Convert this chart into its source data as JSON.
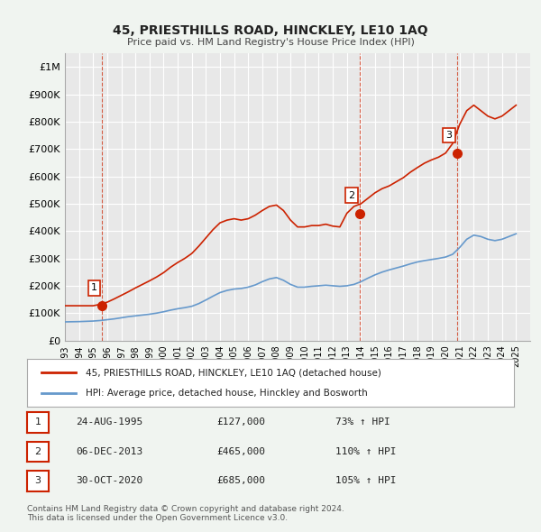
{
  "title": "45, PRIESTHILLS ROAD, HINCKLEY, LE10 1AQ",
  "subtitle": "Price paid vs. HM Land Registry's House Price Index (HPI)",
  "ylabel": "",
  "xlim_start": 1993,
  "xlim_end": 2026,
  "ylim_min": 0,
  "ylim_max": 1050000,
  "yticks": [
    0,
    100000,
    200000,
    300000,
    400000,
    500000,
    600000,
    700000,
    800000,
    900000,
    1000000
  ],
  "ytick_labels": [
    "£0",
    "£100K",
    "£200K",
    "£300K",
    "£400K",
    "£500K",
    "£600K",
    "£700K",
    "£800K",
    "£900K",
    "£1M"
  ],
  "xticks": [
    1993,
    1994,
    1995,
    1996,
    1997,
    1998,
    1999,
    2000,
    2001,
    2002,
    2003,
    2004,
    2005,
    2006,
    2007,
    2008,
    2009,
    2010,
    2011,
    2012,
    2013,
    2014,
    2015,
    2016,
    2017,
    2018,
    2019,
    2020,
    2021,
    2022,
    2023,
    2024,
    2025
  ],
  "hpi_color": "#6699cc",
  "price_color": "#cc2200",
  "bg_color": "#f0f0f0",
  "plot_bg_color": "#e8e8e8",
  "grid_color": "#ffffff",
  "transaction_dates": [
    1995.65,
    2013.92,
    2020.83
  ],
  "transaction_prices": [
    127000,
    465000,
    685000
  ],
  "transaction_labels": [
    "1",
    "2",
    "3"
  ],
  "legend_label_price": "45, PRIESTHILLS ROAD, HINCKLEY, LE10 1AQ (detached house)",
  "legend_label_hpi": "HPI: Average price, detached house, Hinckley and Bosworth",
  "table_rows": [
    [
      "1",
      "24-AUG-1995",
      "£127,000",
      "73% ↑ HPI"
    ],
    [
      "2",
      "06-DEC-2013",
      "£465,000",
      "110% ↑ HPI"
    ],
    [
      "3",
      "30-OCT-2020",
      "£685,000",
      "105% ↑ HPI"
    ]
  ],
  "footer": "Contains HM Land Registry data © Crown copyright and database right 2024.\nThis data is licensed under the Open Government Licence v3.0.",
  "hpi_x": [
    1993,
    1993.5,
    1994,
    1994.5,
    1995,
    1995.5,
    1996,
    1996.5,
    1997,
    1997.5,
    1998,
    1998.5,
    1999,
    1999.5,
    2000,
    2000.5,
    2001,
    2001.5,
    2002,
    2002.5,
    2003,
    2003.5,
    2004,
    2004.5,
    2005,
    2005.5,
    2006,
    2006.5,
    2007,
    2007.5,
    2008,
    2008.5,
    2009,
    2009.5,
    2010,
    2010.5,
    2011,
    2011.5,
    2012,
    2012.5,
    2013,
    2013.5,
    2014,
    2014.5,
    2015,
    2015.5,
    2016,
    2016.5,
    2017,
    2017.5,
    2018,
    2018.5,
    2019,
    2019.5,
    2020,
    2020.5,
    2021,
    2021.5,
    2022,
    2022.5,
    2023,
    2023.5,
    2024,
    2024.5,
    2025
  ],
  "hpi_y": [
    68000,
    68500,
    69000,
    70000,
    71000,
    73000,
    76000,
    79000,
    83000,
    87000,
    90000,
    93000,
    96000,
    100000,
    105000,
    111000,
    116000,
    120000,
    125000,
    135000,
    148000,
    162000,
    175000,
    183000,
    188000,
    190000,
    195000,
    203000,
    215000,
    225000,
    230000,
    220000,
    205000,
    195000,
    195000,
    198000,
    200000,
    202000,
    200000,
    198000,
    200000,
    205000,
    215000,
    228000,
    240000,
    250000,
    258000,
    265000,
    272000,
    280000,
    287000,
    292000,
    296000,
    300000,
    305000,
    315000,
    340000,
    370000,
    385000,
    380000,
    370000,
    365000,
    370000,
    380000,
    390000
  ],
  "price_x": [
    1993,
    1993.5,
    1994,
    1994.5,
    1995,
    1995.5,
    1996,
    1996.5,
    1997,
    1997.5,
    1998,
    1998.5,
    1999,
    1999.5,
    2000,
    2000.5,
    2001,
    2001.5,
    2002,
    2002.5,
    2003,
    2003.5,
    2004,
    2004.5,
    2005,
    2005.5,
    2006,
    2006.5,
    2007,
    2007.5,
    2008,
    2008.5,
    2009,
    2009.5,
    2010,
    2010.5,
    2011,
    2011.5,
    2012,
    2012.5,
    2013,
    2013.5,
    2014,
    2014.5,
    2015,
    2015.5,
    2016,
    2016.5,
    2017,
    2017.5,
    2018,
    2018.5,
    2019,
    2019.5,
    2020,
    2020.5,
    2021,
    2021.5,
    2022,
    2022.5,
    2023,
    2023.5,
    2024,
    2024.5,
    2025
  ],
  "price_y": [
    127000,
    127000,
    127000,
    127000,
    127000,
    132000,
    140000,
    152000,
    165000,
    178000,
    192000,
    205000,
    218000,
    232000,
    248000,
    268000,
    285000,
    300000,
    318000,
    345000,
    375000,
    405000,
    430000,
    440000,
    445000,
    440000,
    445000,
    458000,
    475000,
    490000,
    495000,
    475000,
    440000,
    415000,
    415000,
    420000,
    420000,
    425000,
    418000,
    415000,
    465000,
    490000,
    500000,
    520000,
    540000,
    555000,
    565000,
    580000,
    595000,
    615000,
    632000,
    648000,
    660000,
    670000,
    685000,
    720000,
    790000,
    840000,
    860000,
    840000,
    820000,
    810000,
    820000,
    840000,
    860000
  ]
}
